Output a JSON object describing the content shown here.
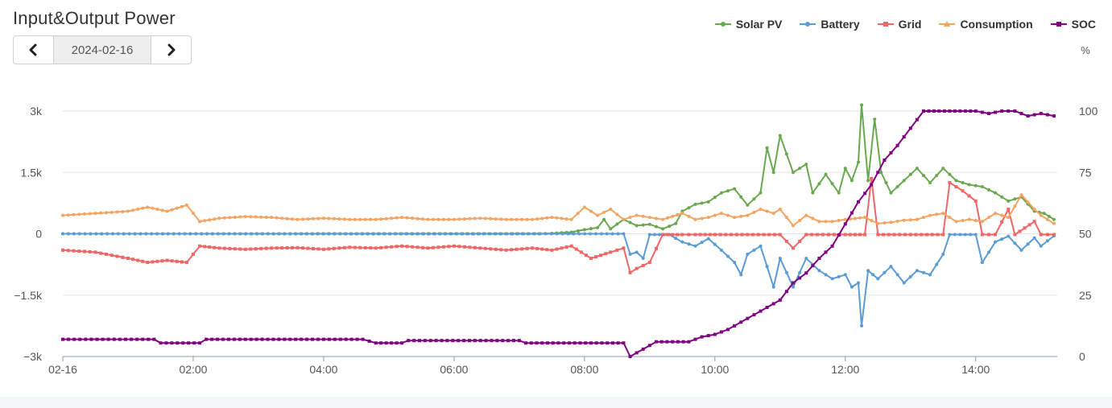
{
  "title": "Input&Output Power",
  "date_nav": {
    "date": "2024-02-16",
    "prev_icon": "chevron-left-icon",
    "next_icon": "chevron-right-icon"
  },
  "legend": [
    {
      "name": "Solar PV",
      "color": "#6aa84f"
    },
    {
      "name": "Battery",
      "color": "#5b9bd5"
    },
    {
      "name": "Grid",
      "color": "#ee6666"
    },
    {
      "name": "Consumption",
      "color": "#f4a460"
    },
    {
      "name": "SOC",
      "color": "#800080"
    }
  ],
  "chart_data": {
    "type": "line",
    "y_left": {
      "min": -3000,
      "max": 3000,
      "ticks": [
        -3000,
        -1500,
        0,
        1500,
        3000
      ],
      "tick_labels": [
        "−3k",
        "−1.5k",
        "0",
        "1.5k",
        "3k"
      ]
    },
    "y_right": {
      "unit": "%",
      "min": 0,
      "max": 100,
      "ticks": [
        0,
        25,
        50,
        75,
        100
      ],
      "tick_labels": [
        "0",
        "25",
        "50",
        "75",
        "100"
      ]
    },
    "x_axis": {
      "min_hour": 0,
      "max_hour": 15.25,
      "ticks": [
        0,
        2,
        4,
        6,
        8,
        10,
        12,
        14
      ],
      "tick_labels": [
        "02-16",
        "02:00",
        "04:00",
        "06:00",
        "08:00",
        "10:00",
        "12:00",
        "14:00"
      ]
    },
    "grid": true,
    "legend_position": "top-right",
    "series": [
      {
        "name": "Solar PV",
        "axis": "left",
        "color": "#6aa84f",
        "points": [
          [
            0,
            0
          ],
          [
            7.3,
            0
          ],
          [
            7.5,
            10
          ],
          [
            7.8,
            40
          ],
          [
            8.0,
            100
          ],
          [
            8.2,
            150
          ],
          [
            8.3,
            350
          ],
          [
            8.4,
            120
          ],
          [
            8.6,
            350
          ],
          [
            8.8,
            200
          ],
          [
            9.0,
            230
          ],
          [
            9.2,
            120
          ],
          [
            9.4,
            250
          ],
          [
            9.5,
            550
          ],
          [
            9.7,
            720
          ],
          [
            9.9,
            780
          ],
          [
            10.1,
            1000
          ],
          [
            10.3,
            1100
          ],
          [
            10.5,
            700
          ],
          [
            10.7,
            1000
          ],
          [
            10.8,
            2100
          ],
          [
            10.9,
            1500
          ],
          [
            11.0,
            2400
          ],
          [
            11.2,
            1500
          ],
          [
            11.4,
            1700
          ],
          [
            11.5,
            1000
          ],
          [
            11.7,
            1450
          ],
          [
            11.9,
            1000
          ],
          [
            12.0,
            1600
          ],
          [
            12.1,
            1300
          ],
          [
            12.2,
            1750
          ],
          [
            12.25,
            3150
          ],
          [
            12.35,
            1300
          ],
          [
            12.45,
            2800
          ],
          [
            12.55,
            1500
          ],
          [
            12.7,
            1000
          ],
          [
            12.9,
            1300
          ],
          [
            13.1,
            1600
          ],
          [
            13.3,
            1250
          ],
          [
            13.5,
            1600
          ],
          [
            13.7,
            1300
          ],
          [
            13.9,
            1200
          ],
          [
            14.1,
            1150
          ],
          [
            14.3,
            1000
          ],
          [
            14.5,
            800
          ],
          [
            14.7,
            900
          ],
          [
            14.9,
            550
          ],
          [
            15.05,
            500
          ],
          [
            15.2,
            350
          ]
        ]
      },
      {
        "name": "Battery",
        "axis": "left",
        "color": "#5b9bd5",
        "points": [
          [
            0,
            0
          ],
          [
            8.6,
            0
          ],
          [
            8.7,
            -500
          ],
          [
            8.8,
            -450
          ],
          [
            8.9,
            -600
          ],
          [
            9.0,
            -20
          ],
          [
            9.3,
            -20
          ],
          [
            9.5,
            -200
          ],
          [
            9.7,
            -300
          ],
          [
            9.9,
            -120
          ],
          [
            10.1,
            -400
          ],
          [
            10.3,
            -700
          ],
          [
            10.4,
            -1000
          ],
          [
            10.5,
            -500
          ],
          [
            10.7,
            -300
          ],
          [
            10.9,
            -1300
          ],
          [
            11.0,
            -600
          ],
          [
            11.2,
            -1300
          ],
          [
            11.4,
            -600
          ],
          [
            11.6,
            -900
          ],
          [
            11.8,
            -1100
          ],
          [
            12.0,
            -1000
          ],
          [
            12.1,
            -1300
          ],
          [
            12.2,
            -1200
          ],
          [
            12.25,
            -2250
          ],
          [
            12.35,
            -900
          ],
          [
            12.5,
            -1100
          ],
          [
            12.7,
            -800
          ],
          [
            12.9,
            -1200
          ],
          [
            13.1,
            -900
          ],
          [
            13.3,
            -1000
          ],
          [
            13.5,
            -500
          ],
          [
            13.6,
            -20
          ],
          [
            14.0,
            -20
          ],
          [
            14.1,
            -700
          ],
          [
            14.3,
            -200
          ],
          [
            14.5,
            -60
          ],
          [
            14.7,
            -400
          ],
          [
            14.9,
            -100
          ],
          [
            15.0,
            -300
          ],
          [
            15.2,
            -50
          ]
        ]
      },
      {
        "name": "Grid",
        "axis": "left",
        "color": "#ee6666",
        "points": [
          [
            0,
            -400
          ],
          [
            0.5,
            -450
          ],
          [
            1.0,
            -600
          ],
          [
            1.3,
            -700
          ],
          [
            1.6,
            -650
          ],
          [
            1.9,
            -700
          ],
          [
            2.1,
            -300
          ],
          [
            2.4,
            -350
          ],
          [
            2.8,
            -380
          ],
          [
            3.2,
            -350
          ],
          [
            3.6,
            -340
          ],
          [
            4.0,
            -380
          ],
          [
            4.4,
            -330
          ],
          [
            4.8,
            -350
          ],
          [
            5.2,
            -300
          ],
          [
            5.6,
            -350
          ],
          [
            6.0,
            -300
          ],
          [
            6.4,
            -350
          ],
          [
            6.8,
            -400
          ],
          [
            7.2,
            -350
          ],
          [
            7.5,
            -400
          ],
          [
            7.8,
            -300
          ],
          [
            8.1,
            -600
          ],
          [
            8.4,
            -450
          ],
          [
            8.6,
            -350
          ],
          [
            8.7,
            -950
          ],
          [
            8.8,
            -850
          ],
          [
            9.0,
            -700
          ],
          [
            9.2,
            -20
          ],
          [
            9.5,
            -20
          ],
          [
            9.7,
            -20
          ],
          [
            10.0,
            -20
          ],
          [
            10.5,
            -20
          ],
          [
            11.0,
            -20
          ],
          [
            11.2,
            -350
          ],
          [
            11.4,
            -20
          ],
          [
            12.0,
            -20
          ],
          [
            12.3,
            -20
          ],
          [
            12.4,
            1350
          ],
          [
            12.5,
            -20
          ],
          [
            13.0,
            -20
          ],
          [
            13.5,
            -20
          ],
          [
            13.6,
            1250
          ],
          [
            13.8,
            1050
          ],
          [
            14.0,
            800
          ],
          [
            14.1,
            -20
          ],
          [
            14.3,
            -20
          ],
          [
            14.5,
            600
          ],
          [
            14.6,
            -20
          ],
          [
            14.9,
            300
          ],
          [
            15.0,
            -20
          ],
          [
            15.2,
            -20
          ]
        ]
      },
      {
        "name": "Consumption",
        "axis": "left",
        "color": "#f4a460",
        "points": [
          [
            0,
            450
          ],
          [
            0.5,
            500
          ],
          [
            1.0,
            550
          ],
          [
            1.3,
            650
          ],
          [
            1.6,
            550
          ],
          [
            1.9,
            700
          ],
          [
            2.1,
            300
          ],
          [
            2.4,
            380
          ],
          [
            2.8,
            420
          ],
          [
            3.2,
            400
          ],
          [
            3.6,
            350
          ],
          [
            4.0,
            380
          ],
          [
            4.4,
            350
          ],
          [
            4.8,
            350
          ],
          [
            5.2,
            400
          ],
          [
            5.6,
            350
          ],
          [
            6.0,
            350
          ],
          [
            6.4,
            380
          ],
          [
            6.8,
            350
          ],
          [
            7.2,
            350
          ],
          [
            7.5,
            400
          ],
          [
            7.8,
            350
          ],
          [
            8.0,
            650
          ],
          [
            8.2,
            450
          ],
          [
            8.4,
            600
          ],
          [
            8.6,
            350
          ],
          [
            8.8,
            450
          ],
          [
            9.0,
            400
          ],
          [
            9.2,
            350
          ],
          [
            9.5,
            500
          ],
          [
            9.7,
            350
          ],
          [
            9.9,
            400
          ],
          [
            10.1,
            500
          ],
          [
            10.3,
            400
          ],
          [
            10.5,
            450
          ],
          [
            10.7,
            600
          ],
          [
            10.9,
            500
          ],
          [
            11.0,
            600
          ],
          [
            11.2,
            200
          ],
          [
            11.4,
            450
          ],
          [
            11.6,
            300
          ],
          [
            11.8,
            300
          ],
          [
            12.0,
            350
          ],
          [
            12.3,
            400
          ],
          [
            12.5,
            250
          ],
          [
            12.7,
            280
          ],
          [
            12.9,
            330
          ],
          [
            13.1,
            350
          ],
          [
            13.3,
            450
          ],
          [
            13.5,
            500
          ],
          [
            13.7,
            300
          ],
          [
            13.9,
            350
          ],
          [
            14.1,
            300
          ],
          [
            14.3,
            500
          ],
          [
            14.5,
            400
          ],
          [
            14.7,
            950
          ],
          [
            14.9,
            600
          ],
          [
            15.0,
            450
          ],
          [
            15.2,
            250
          ]
        ]
      },
      {
        "name": "SOC",
        "axis": "right",
        "color": "#800080",
        "points": [
          [
            0,
            7
          ],
          [
            1.4,
            7
          ],
          [
            1.5,
            5.5
          ],
          [
            2.1,
            5.5
          ],
          [
            2.2,
            7
          ],
          [
            4.6,
            7
          ],
          [
            4.8,
            5.5
          ],
          [
            5.2,
            5.5
          ],
          [
            5.3,
            6.5
          ],
          [
            7.0,
            6.5
          ],
          [
            7.1,
            5.5
          ],
          [
            8.6,
            5.5
          ],
          [
            8.7,
            0
          ],
          [
            8.9,
            3
          ],
          [
            9.1,
            6
          ],
          [
            9.6,
            6
          ],
          [
            9.8,
            8
          ],
          [
            10.0,
            9
          ],
          [
            10.2,
            11
          ],
          [
            10.4,
            14
          ],
          [
            10.6,
            17
          ],
          [
            10.8,
            20
          ],
          [
            11.0,
            23
          ],
          [
            11.2,
            30
          ],
          [
            11.4,
            34
          ],
          [
            11.6,
            40
          ],
          [
            11.8,
            45
          ],
          [
            12.0,
            54
          ],
          [
            12.2,
            63
          ],
          [
            12.4,
            70
          ],
          [
            12.6,
            80
          ],
          [
            12.8,
            86
          ],
          [
            13.0,
            93
          ],
          [
            13.2,
            100
          ],
          [
            13.6,
            100
          ],
          [
            14.0,
            100
          ],
          [
            14.2,
            99
          ],
          [
            14.4,
            100
          ],
          [
            14.6,
            100
          ],
          [
            14.8,
            98
          ],
          [
            15.0,
            99
          ],
          [
            15.2,
            98
          ]
        ]
      }
    ]
  }
}
